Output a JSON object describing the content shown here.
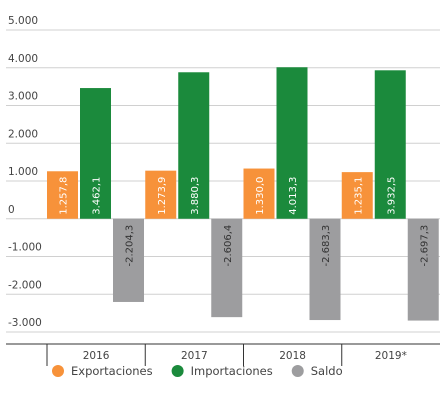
{
  "chart_data": {
    "type": "bar",
    "categories": [
      "2016",
      "2017",
      "2018",
      "2019*"
    ],
    "series": [
      {
        "name": "Exportaciones",
        "color": "#f7923a",
        "values": [
          1257.8,
          1273.9,
          1330.0,
          1235.1
        ],
        "value_labels": [
          "1.257,8",
          "1.273,9",
          "1.330,0",
          "1.235,1"
        ]
      },
      {
        "name": "Importaciones",
        "color": "#1b8a3c",
        "values": [
          3462.1,
          3880.3,
          4013.3,
          3932.5
        ],
        "value_labels": [
          "3.462,1",
          "3.880,3",
          "4.013,3",
          "3.932,5"
        ]
      },
      {
        "name": "Saldo",
        "color": "#9d9d9f",
        "values": [
          -2204.3,
          -2606.4,
          -2683.3,
          -2697.3
        ],
        "value_labels": [
          "-2.204,3",
          "-2.606,4",
          "-2.683,3",
          "-2.697,3"
        ]
      }
    ],
    "ylim": [
      -3000,
      5000
    ],
    "yticks": [
      {
        "value": -3000,
        "label": "-3.000"
      },
      {
        "value": -2000,
        "label": "-2.000"
      },
      {
        "value": -1000,
        "label": "-1.000"
      },
      0,
      {
        "value": 1000,
        "label": "1.000"
      },
      {
        "value": 2000,
        "label": "2.000"
      },
      {
        "value": 3000,
        "label": "3.000"
      },
      {
        "value": 4000,
        "label": "4.000"
      },
      {
        "value": 5000,
        "label": "5.000"
      }
    ],
    "grid": true
  }
}
